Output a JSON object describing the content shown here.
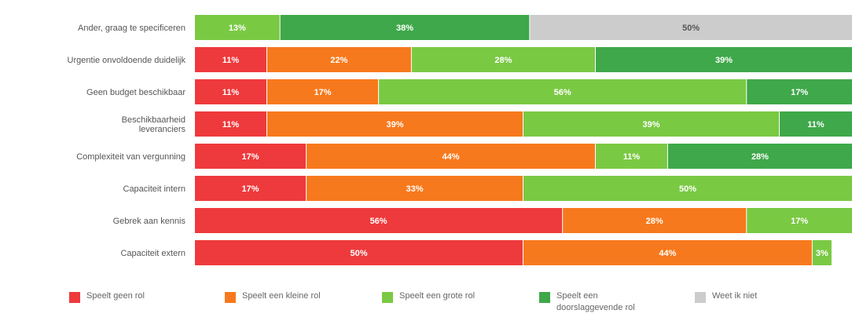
{
  "chart_data": {
    "type": "bar",
    "orientation": "horizontal",
    "stacked": true,
    "categories": [
      "Ander, graag te specificeren",
      "Urgentie onvoldoende duidelijk",
      "Geen budget beschikbaar",
      "Beschikbaarheid leveranciers",
      "Complexiteit van vergunning",
      "Capaciteit intern",
      "Gebrek aan kennis",
      "Capaciteit extern"
    ],
    "series": [
      {
        "name": "Speelt geen rol",
        "color": "#ee3a3c",
        "values": [
          0,
          11,
          11,
          11,
          17,
          17,
          56,
          50
        ]
      },
      {
        "name": "Speelt een kleine rol",
        "color": "#f7791d",
        "values": [
          0,
          22,
          17,
          39,
          44,
          33,
          28,
          44
        ]
      },
      {
        "name": "Speelt een grote rol",
        "color": "#7ac943",
        "values": [
          13,
          28,
          56,
          39,
          11,
          50,
          17,
          3
        ]
      },
      {
        "name": "Speelt een doorslaggevende rol",
        "color": "#3fa84a",
        "values": [
          38,
          39,
          17,
          11,
          28,
          0,
          0,
          0
        ]
      },
      {
        "name": "Weet ik niet",
        "color": "#cccccc",
        "values": [
          50,
          0,
          0,
          0,
          0,
          0,
          0,
          0
        ]
      }
    ],
    "segment_labels": [
      [
        "13%",
        "38%",
        "50%"
      ],
      [
        "11%",
        "22%",
        "28%",
        "39%"
      ],
      [
        "11%",
        "17%",
        "56%",
        "17%"
      ],
      [
        "11%",
        "39%",
        "39%",
        "11%"
      ],
      [
        "17%",
        "44%",
        "11%",
        "28%"
      ],
      [
        "17%",
        "33%",
        "50%"
      ],
      [
        "56%",
        "28%",
        "17%"
      ],
      [
        "50%",
        "44%",
        "3%"
      ]
    ],
    "xlim": [
      0,
      100
    ],
    "legend_position": "bottom",
    "grid": false
  },
  "legend": {
    "items": [
      {
        "label": "Speelt geen rol",
        "color": "#ee3a3c"
      },
      {
        "label": "Speelt een kleine rol",
        "color": "#f7791d"
      },
      {
        "label": "Speelt een grote rol",
        "color": "#7ac943"
      },
      {
        "label": "Speelt een doorslaggevende rol",
        "color": "#3fa84a"
      },
      {
        "label": "Weet ik niet",
        "color": "#cccccc"
      }
    ]
  }
}
